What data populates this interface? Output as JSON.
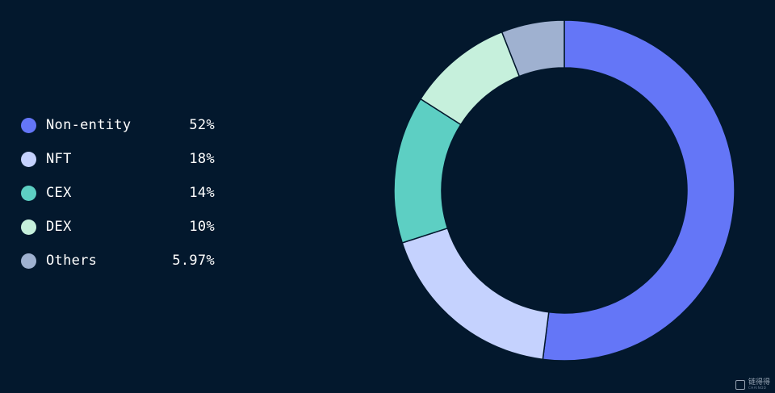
{
  "chart_data": {
    "type": "pie",
    "title": "",
    "categories": [
      "Non-entity",
      "NFT",
      "CEX",
      "DEX",
      "Others"
    ],
    "values": [
      52,
      18,
      14,
      10,
      5.97
    ],
    "value_labels": [
      "52%",
      "18%",
      "14%",
      "10%",
      "5.97%"
    ],
    "colors": [
      "#6476f7",
      "#c5d2fe",
      "#5dcfc3",
      "#c6f0dc",
      "#9fb1d0"
    ],
    "donut": true,
    "legend_position": "left"
  },
  "watermark": {
    "main": "链得得",
    "sub": "CHAINDD"
  }
}
